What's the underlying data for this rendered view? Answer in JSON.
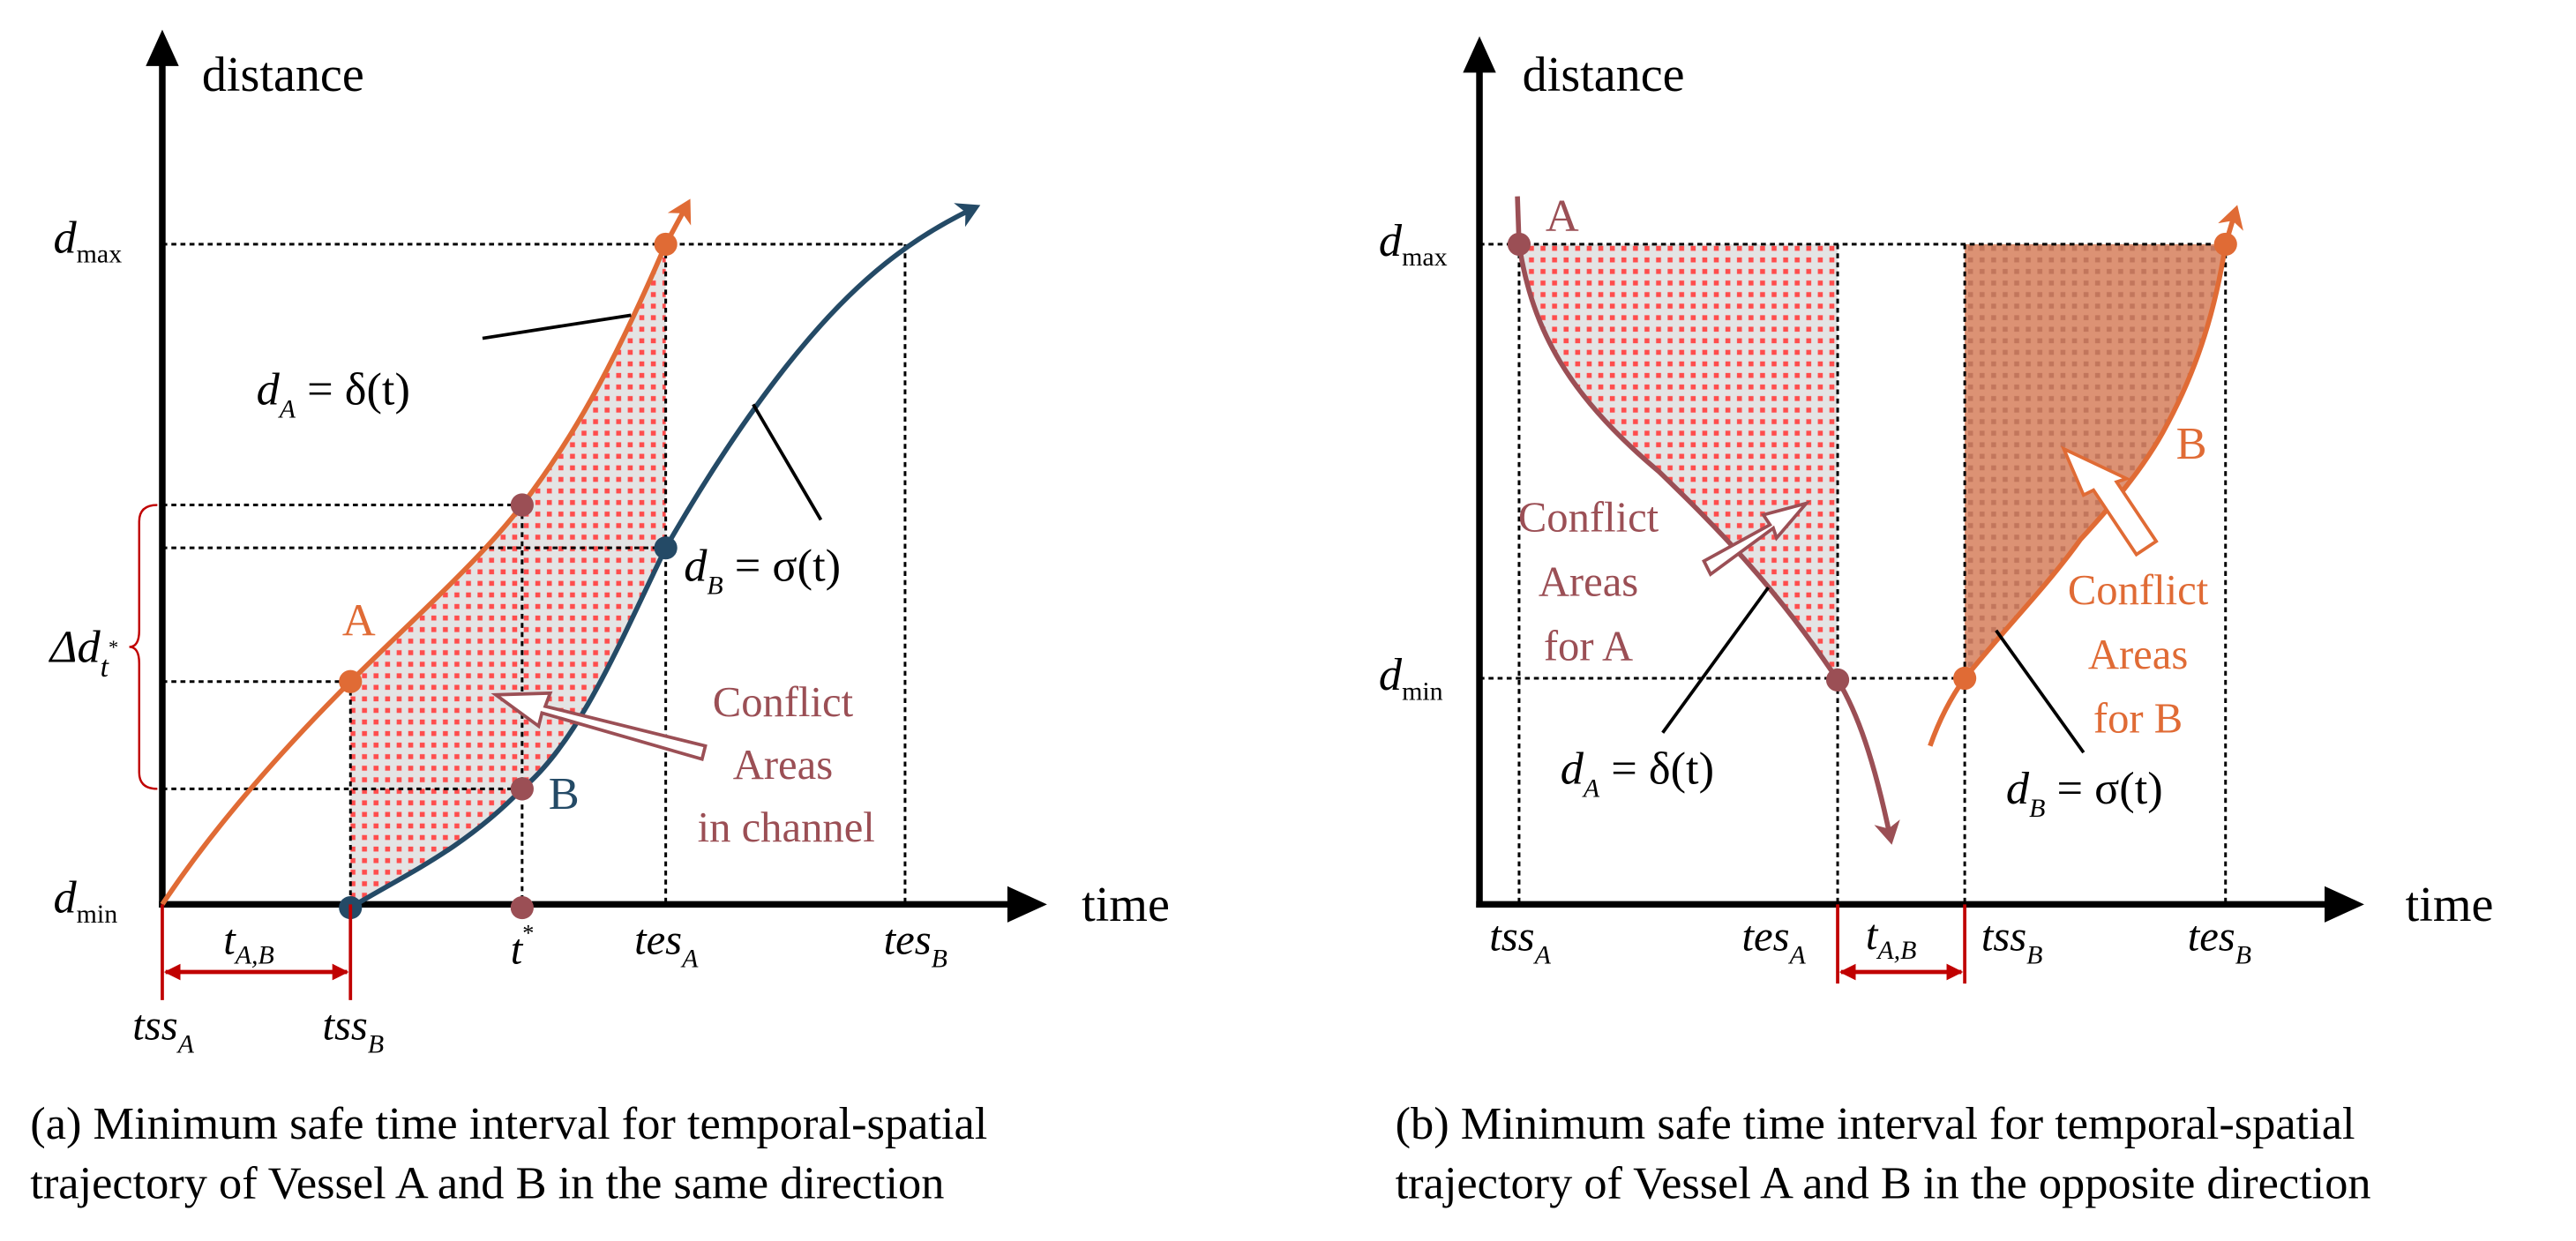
{
  "colors": {
    "vessel_a_left": "#E06B35",
    "vessel_b_left": "#244A66",
    "vessel_a_right": "#9B4F55",
    "vessel_b_right": "#E06B35",
    "conflict_text": "#9B4F55",
    "interval_red": "#C00000",
    "axis": "#000000"
  },
  "panel_a": {
    "y_axis_label": "distance",
    "x_axis_label": "time",
    "dmax": {
      "main": "d",
      "sub": "max"
    },
    "dmin": {
      "main": "d",
      "sub": "min"
    },
    "delta_d": {
      "main": "Δd",
      "sub": "t",
      "sup": "*"
    },
    "curve_a_label": "A",
    "curve_b_label": "B",
    "eq_a": {
      "d": "d",
      "sub": "A",
      "rest": " = δ(t)"
    },
    "eq_b": {
      "d": "d",
      "sub": "B",
      "rest": " = σ(t)"
    },
    "conflict_lines": [
      "Conflict",
      "Areas",
      "in channel"
    ],
    "interval": {
      "main": "t",
      "sub": "A,B"
    },
    "ticks": {
      "tss_a": {
        "main": "tss",
        "sub": "A"
      },
      "tss_b": {
        "main": "tss",
        "sub": "B"
      },
      "t_star": {
        "main": "t",
        "sup": "*"
      },
      "tes_a": {
        "main": "tes",
        "sub": "A"
      },
      "tes_b": {
        "main": "tes",
        "sub": "B"
      }
    },
    "caption": [
      "(a) Minimum safe time interval for temporal-spatial",
      "trajectory of Vessel A and B in the same direction"
    ]
  },
  "panel_b": {
    "y_axis_label": "distance",
    "x_axis_label": "time",
    "dmax": {
      "main": "d",
      "sub": "max"
    },
    "dmin": {
      "main": "d",
      "sub": "min"
    },
    "curve_a_label": "A",
    "curve_b_label": "B",
    "eq_a": {
      "d": "d",
      "sub": "A",
      "rest": " = δ(t)"
    },
    "eq_b": {
      "d": "d",
      "sub": "B",
      "rest": " = σ(t)"
    },
    "conflict_a_lines": [
      "Conflict",
      "Areas",
      "for A"
    ],
    "conflict_b_lines": [
      "Conflict",
      "Areas",
      "for B"
    ],
    "interval": {
      "main": "t",
      "sub": "A,B"
    },
    "ticks": {
      "tss_a": {
        "main": "tss",
        "sub": "A"
      },
      "tes_a": {
        "main": "tes",
        "sub": "A"
      },
      "tss_b": {
        "main": "tss",
        "sub": "B"
      },
      "tes_b": {
        "main": "tes",
        "sub": "B"
      }
    },
    "caption": [
      "(b) Minimum safe time interval for temporal-spatial",
      "trajectory of Vessel A and B in the opposite direction"
    ]
  }
}
